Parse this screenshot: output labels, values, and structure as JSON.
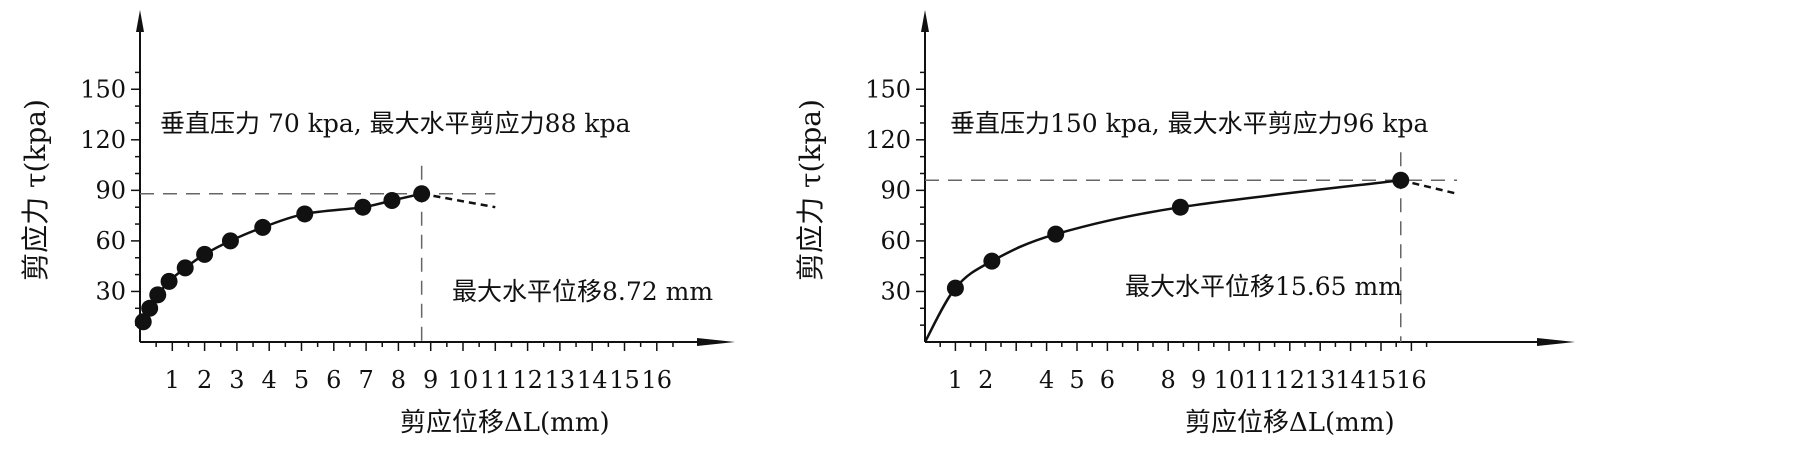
{
  "chart_data": [
    {
      "type": "scatter",
      "ylabel": "剪应力 τ(kpa)",
      "xlabel": "剪应位移ΔL(mm)",
      "annotation_main": "垂直压力  70 kpa, 最大水平剪应力88 kpa",
      "annotation_disp": "最大水平位移8.72 mm",
      "x_ticks": [
        1,
        2,
        3,
        4,
        5,
        6,
        7,
        8,
        9,
        10,
        11,
        12,
        13,
        14,
        15,
        16
      ],
      "y_ticks": [
        30,
        60,
        90,
        120,
        150
      ],
      "xlim": [
        0,
        16
      ],
      "ylim": [
        0,
        150
      ],
      "points": [
        {
          "x": 0.1,
          "y": 12
        },
        {
          "x": 0.3,
          "y": 20
        },
        {
          "x": 0.55,
          "y": 28
        },
        {
          "x": 0.9,
          "y": 36
        },
        {
          "x": 1.4,
          "y": 44
        },
        {
          "x": 2.0,
          "y": 52
        },
        {
          "x": 2.8,
          "y": 60
        },
        {
          "x": 3.8,
          "y": 68
        },
        {
          "x": 5.1,
          "y": 76
        },
        {
          "x": 6.9,
          "y": 80
        },
        {
          "x": 7.8,
          "y": 84
        },
        {
          "x": 8.72,
          "y": 88
        }
      ],
      "post_peak": [
        {
          "x": 8.72,
          "y": 88
        },
        {
          "x": 11.0,
          "y": 80
        }
      ],
      "peak_y": 88,
      "peak_x": 8.72,
      "hline_to_x": 11.0
    },
    {
      "type": "scatter",
      "ylabel": "剪应力 τ(kpa)",
      "xlabel": "剪应位移ΔL(mm)",
      "annotation_main": "垂直压力150 kpa, 最大水平剪应力96 kpa",
      "annotation_disp": "最大水平位移15.65 mm",
      "x_ticks": [
        1,
        2,
        4,
        5,
        6,
        8,
        9,
        10,
        11,
        12,
        13,
        14,
        15,
        16
      ],
      "y_ticks": [
        30,
        60,
        90,
        120,
        150
      ],
      "xlim": [
        0,
        16
      ],
      "ylim": [
        0,
        150
      ],
      "curve_start": {
        "x": 0,
        "y": 0
      },
      "points": [
        {
          "x": 1.0,
          "y": 32
        },
        {
          "x": 2.2,
          "y": 48
        },
        {
          "x": 4.3,
          "y": 64
        },
        {
          "x": 8.4,
          "y": 80
        },
        {
          "x": 15.65,
          "y": 96
        }
      ],
      "post_peak": [
        {
          "x": 15.65,
          "y": 96
        },
        {
          "x": 17.5,
          "y": 88
        }
      ],
      "peak_y": 96,
      "peak_x": 15.65,
      "hline_to_x": 17.5
    }
  ]
}
